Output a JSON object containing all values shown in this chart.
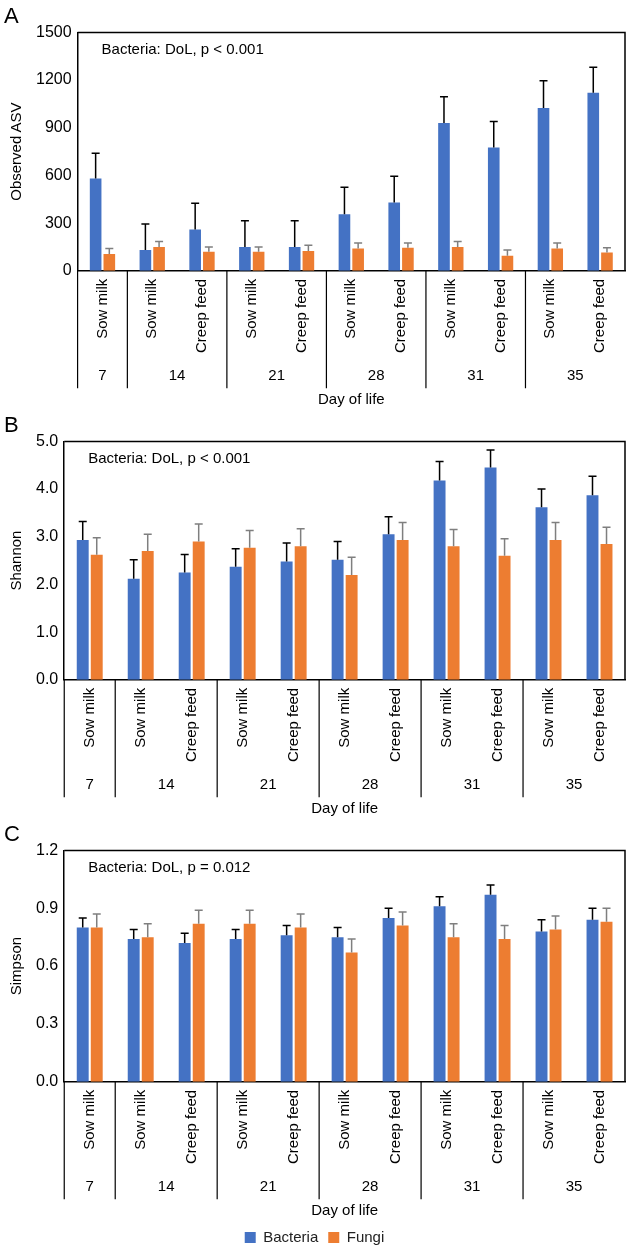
{
  "chart_data": [
    {
      "type": "bar",
      "title": "A",
      "ylabel": "Observed ASV",
      "xlabel": "Day of life",
      "categories": [
        "Sow milk",
        "Sow milk",
        "Creep feed",
        "Sow milk",
        "Creep feed",
        "Sow milk",
        "Creep feed",
        "Sow milk",
        "Creep feed",
        "Sow milk",
        "Creep feed"
      ],
      "ylim": [
        0,
        1500
      ],
      "yticks": [
        0,
        300,
        600,
        900,
        1200,
        1500
      ],
      "grid": false,
      "legend": false,
      "annotations": [
        "Bacteria: DoL, p < 0.001",
        "7",
        "14",
        "21",
        "28",
        "31",
        "35"
      ],
      "series": [
        {
          "color": "#4472c4",
          "values": [
            580,
            130,
            260,
            150,
            150,
            355,
            430,
            930,
            775,
            1025,
            1120
          ],
          "errors": [
            [
              580,
              740
            ],
            [
              130,
              295
            ],
            [
              260,
              425
            ],
            [
              150,
              315
            ],
            [
              150,
              315
            ],
            [
              355,
              525
            ],
            [
              430,
              595
            ],
            [
              930,
              1095
            ],
            [
              775,
              940
            ],
            [
              1025,
              1195
            ],
            [
              1120,
              1280
            ]
          ]
        },
        {
          "color": "#ed7d31",
          "values": [
            105,
            150,
            120,
            120,
            125,
            140,
            145,
            150,
            95,
            140,
            115
          ],
          "errors": [
            [
              105,
              140
            ],
            [
              150,
              185
            ],
            [
              120,
              150
            ],
            [
              120,
              150
            ],
            [
              125,
              160
            ],
            [
              140,
              175
            ],
            [
              145,
              175
            ],
            [
              150,
              185
            ],
            [
              95,
              130
            ],
            [
              140,
              175
            ],
            [
              115,
              145
            ]
          ]
        }
      ]
    },
    {
      "type": "bar",
      "title": "B",
      "ylabel": "Shannon",
      "xlabel": "Day of life",
      "categories": [
        "Sow milk",
        "Sow milk",
        "Creep feed",
        "Sow milk",
        "Creep feed",
        "Sow milk",
        "Creep feed",
        "Sow milk",
        "Creep feed",
        "Sow milk",
        "Creep feed"
      ],
      "ylim": [
        0,
        5
      ],
      "yticks": [
        {
          "value": 0,
          "label": "0.0"
        },
        {
          "value": 1,
          "label": "1.0"
        },
        {
          "value": 2,
          "label": "2.0"
        },
        {
          "value": 3,
          "label": "3.0"
        },
        {
          "value": 4,
          "label": "4.0"
        },
        {
          "value": 5,
          "label": "5.0"
        }
      ],
      "grid": false,
      "legend": false,
      "annotations": [
        "Bacteria: DoL, p < 0.001",
        "7",
        "14",
        "21",
        "28",
        "31",
        "35"
      ],
      "series": [
        {
          "color": "#4472c4",
          "values": [
            2.93,
            2.12,
            2.25,
            2.37,
            2.48,
            2.52,
            3.05,
            4.18,
            4.45,
            3.62,
            3.87
          ],
          "errors": [
            [
              2.93,
              3.32
            ],
            [
              2.12,
              2.52
            ],
            [
              2.25,
              2.63
            ],
            [
              2.37,
              2.75
            ],
            [
              2.48,
              2.87
            ],
            [
              2.52,
              2.9
            ],
            [
              3.05,
              3.42
            ],
            [
              4.18,
              4.58
            ],
            [
              4.45,
              4.82
            ],
            [
              3.62,
              4.0
            ],
            [
              3.87,
              4.27
            ]
          ]
        },
        {
          "color": "#ed7d31",
          "values": [
            2.62,
            2.7,
            2.9,
            2.77,
            2.8,
            2.2,
            2.93,
            2.8,
            2.6,
            2.93,
            2.85
          ],
          "errors": [
            [
              2.62,
              2.98
            ],
            [
              2.7,
              3.05
            ],
            [
              2.9,
              3.27
            ],
            [
              2.77,
              3.13
            ],
            [
              2.8,
              3.17
            ],
            [
              2.2,
              2.57
            ],
            [
              2.93,
              3.3
            ],
            [
              2.8,
              3.15
            ],
            [
              2.6,
              2.96
            ],
            [
              2.93,
              3.3
            ],
            [
              2.85,
              3.2
            ]
          ]
        }
      ]
    },
    {
      "type": "bar",
      "title": "C",
      "ylabel": "Simpson",
      "xlabel": "Day of life",
      "categories": [
        "Sow milk",
        "Sow milk",
        "Creep feed",
        "Sow milk",
        "Creep feed",
        "Sow milk",
        "Creep feed",
        "Sow milk",
        "Creep feed",
        "Sow milk",
        "Creep feed"
      ],
      "ylim": [
        0,
        1.2
      ],
      "yticks": [
        {
          "value": 0,
          "label": "0.0"
        },
        {
          "value": 0.3,
          "label": "0.3"
        },
        {
          "value": 0.6,
          "label": "0.6"
        },
        {
          "value": 0.9,
          "label": "0.9"
        },
        {
          "value": 1.2,
          "label": "1.2"
        }
      ],
      "grid": false,
      "legend": "bottom",
      "annotations": [
        "Bacteria: DoL, p = 0.012",
        "7",
        "14",
        "21",
        "28",
        "31",
        "35"
      ],
      "series": [
        {
          "name": "Bacteria",
          "color": "#4472c4",
          "values": [
            0.8,
            0.74,
            0.72,
            0.74,
            0.76,
            0.75,
            0.85,
            0.91,
            0.97,
            0.78,
            0.84
          ],
          "errors": [
            [
              0.8,
              0.85
            ],
            [
              0.74,
              0.79
            ],
            [
              0.72,
              0.77
            ],
            [
              0.74,
              0.79
            ],
            [
              0.76,
              0.81
            ],
            [
              0.75,
              0.8
            ],
            [
              0.85,
              0.9
            ],
            [
              0.91,
              0.96
            ],
            [
              0.97,
              1.02
            ],
            [
              0.78,
              0.84
            ],
            [
              0.84,
              0.9
            ]
          ]
        },
        {
          "name": "Fungi",
          "color": "#ed7d31",
          "values": [
            0.8,
            0.75,
            0.82,
            0.82,
            0.8,
            0.67,
            0.81,
            0.75,
            0.74,
            0.79,
            0.83
          ],
          "errors": [
            [
              0.8,
              0.87
            ],
            [
              0.75,
              0.82
            ],
            [
              0.82,
              0.89
            ],
            [
              0.82,
              0.89
            ],
            [
              0.8,
              0.87
            ],
            [
              0.67,
              0.74
            ],
            [
              0.81,
              0.88
            ],
            [
              0.75,
              0.82
            ],
            [
              0.74,
              0.81
            ],
            [
              0.79,
              0.86
            ],
            [
              0.83,
              0.9
            ]
          ]
        }
      ]
    }
  ]
}
